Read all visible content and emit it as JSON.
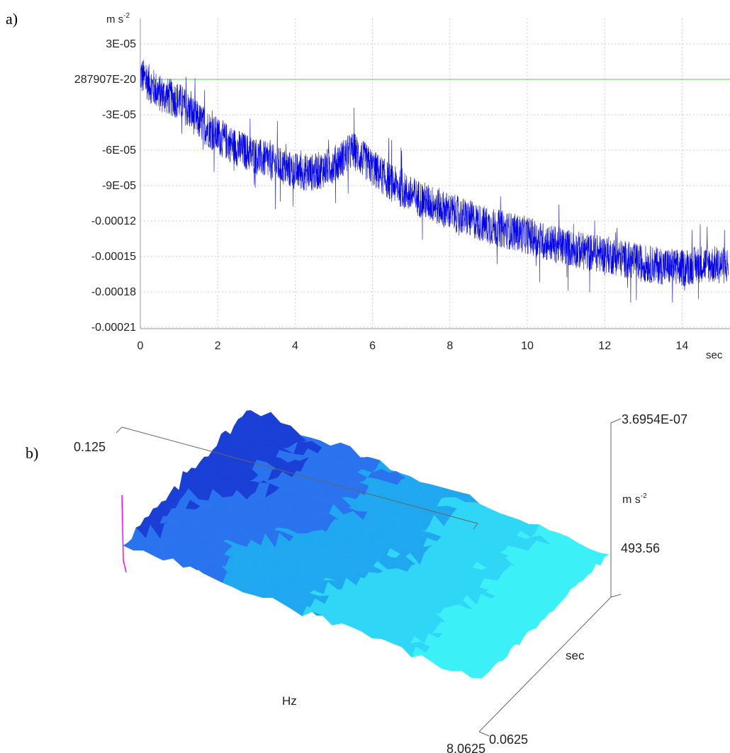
{
  "panels": {
    "a_label": "a)",
    "b_label": "b)"
  },
  "chart_data": [
    {
      "type": "line",
      "ylabel": "m s-2",
      "ylabel_main": "m s",
      "ylabel_exp": "-2",
      "xlabel": "sec",
      "xlim": [
        0,
        15.2
      ],
      "ylim": [
        -0.000215,
        4.3e-05
      ],
      "x_ticks": [
        0,
        2,
        4,
        6,
        8,
        10,
        12,
        14
      ],
      "x_tick_labels": [
        "0",
        "2",
        "4",
        "6",
        "8",
        "10",
        "12",
        "14"
      ],
      "y_ticks": [
        3e-05,
        0,
        -3e-05,
        -6e-05,
        -9e-05,
        -0.00012,
        -0.00015,
        -0.00018,
        -0.00021
      ],
      "y_tick_labels": [
        "3E-05",
        "287907E-20",
        "-3E-05",
        "-6E-05",
        "-9E-05",
        "-0.00012",
        "-0.00015",
        "-0.00018",
        "-0.00021"
      ],
      "grid": true,
      "reference_line": {
        "y": 0,
        "color": "#44dd44"
      },
      "series": [
        {
          "color": "#0000ee",
          "trend": {
            "x": [
              0,
              0.5,
              1,
              1.5,
              2,
              2.5,
              3,
              3.5,
              4,
              4.5,
              5,
              5.5,
              6,
              6.5,
              7,
              7.5,
              8,
              8.5,
              9,
              9.5,
              10,
              10.5,
              11,
              11.5,
              12,
              12.5,
              13,
              13.5,
              14,
              14.5,
              15.2
            ],
            "y": [
              4e-06,
              -1.2e-05,
              -1.8e-05,
              -3.5e-05,
              -4.8e-05,
              -5.8e-05,
              -6.5e-05,
              -7.2e-05,
              -7.8e-05,
              -7.9e-05,
              -7.2e-05,
              -6e-05,
              -7.5e-05,
              -8.8e-05,
              -9.8e-05,
              -0.000105,
              -0.000112,
              -0.000118,
              -0.000124,
              -0.000128,
              -0.000132,
              -0.000138,
              -0.000142,
              -0.000146,
              -0.000148,
              -0.000152,
              -0.000156,
              -0.000158,
              -0.00016,
              -0.000156,
              -0.000158
            ]
          },
          "noise_amplitude": 1.6e-05,
          "samples": 3200
        }
      ]
    },
    {
      "type": "surface",
      "x_axis_label": "Hz",
      "x_range_labels": [
        "0.125",
        "8.0625"
      ],
      "y_axis_label": "sec",
      "y_range_labels": [
        "0.0625",
        "493.56"
      ],
      "z_axis_label_main": "m s",
      "z_axis_label_exp": "-2",
      "z_max_label": "3.6954E-07",
      "colors": [
        "#1a3fd6",
        "#2a73ee",
        "#1fa8f0",
        "#2fd6f5",
        "#3cf0f8"
      ],
      "peak_color": "#ff00ff"
    }
  ]
}
